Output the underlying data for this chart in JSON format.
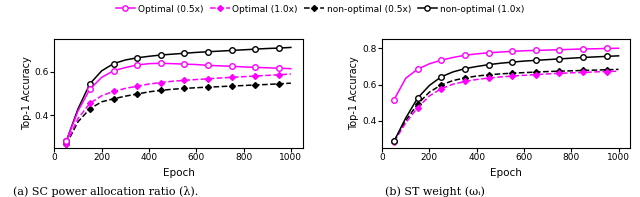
{
  "epochs": [
    50,
    100,
    150,
    200,
    250,
    300,
    350,
    400,
    450,
    500,
    550,
    600,
    650,
    700,
    750,
    800,
    850,
    900,
    950,
    1000
  ],
  "left": {
    "opt_05": [
      0.28,
      0.42,
      0.52,
      0.575,
      0.605,
      0.62,
      0.632,
      0.638,
      0.64,
      0.638,
      0.636,
      0.634,
      0.63,
      0.628,
      0.626,
      0.623,
      0.621,
      0.619,
      0.617,
      0.615
    ],
    "opt_10": [
      0.28,
      0.43,
      0.545,
      0.605,
      0.638,
      0.655,
      0.665,
      0.672,
      0.678,
      0.682,
      0.686,
      0.69,
      0.693,
      0.696,
      0.699,
      0.702,
      0.705,
      0.708,
      0.71,
      0.713
    ],
    "nonopt_05": [
      0.265,
      0.37,
      0.43,
      0.462,
      0.476,
      0.488,
      0.498,
      0.508,
      0.515,
      0.52,
      0.524,
      0.527,
      0.53,
      0.532,
      0.535,
      0.537,
      0.54,
      0.542,
      0.545,
      0.548
    ],
    "nonopt_10": [
      0.268,
      0.385,
      0.455,
      0.49,
      0.51,
      0.524,
      0.534,
      0.544,
      0.551,
      0.557,
      0.561,
      0.565,
      0.568,
      0.572,
      0.575,
      0.578,
      0.581,
      0.584,
      0.587,
      0.59
    ]
  },
  "right": {
    "opt_05": [
      0.515,
      0.635,
      0.685,
      0.715,
      0.735,
      0.75,
      0.762,
      0.77,
      0.776,
      0.78,
      0.784,
      0.787,
      0.789,
      0.791,
      0.793,
      0.795,
      0.797,
      0.798,
      0.8,
      0.801
    ],
    "opt_10": [
      0.285,
      0.415,
      0.525,
      0.595,
      0.643,
      0.67,
      0.688,
      0.7,
      0.71,
      0.718,
      0.724,
      0.73,
      0.734,
      0.738,
      0.742,
      0.746,
      0.75,
      0.753,
      0.756,
      0.759
    ],
    "nonopt_05": [
      0.285,
      0.4,
      0.492,
      0.558,
      0.598,
      0.622,
      0.637,
      0.647,
      0.654,
      0.659,
      0.663,
      0.666,
      0.669,
      0.672,
      0.674,
      0.676,
      0.678,
      0.68,
      0.682,
      0.684
    ],
    "nonopt_10": [
      0.283,
      0.388,
      0.472,
      0.537,
      0.577,
      0.602,
      0.617,
      0.628,
      0.636,
      0.642,
      0.647,
      0.651,
      0.655,
      0.659,
      0.662,
      0.665,
      0.667,
      0.67,
      0.672,
      0.674
    ]
  },
  "mag": "#ff00ff",
  "blk": "#000000",
  "ylim_left": [
    0.25,
    0.75
  ],
  "ylim_right": [
    0.25,
    0.85
  ],
  "yticks_left": [
    0.4,
    0.6
  ],
  "yticks_right": [
    0.4,
    0.6,
    0.8
  ],
  "xticks": [
    0,
    200,
    400,
    600,
    800,
    1000
  ],
  "xlim": [
    0,
    1050
  ],
  "xlabel": "Epoch",
  "ylabel": "Top-1 Accuracy",
  "caption_left": "(a) SC power allocation ratio (λ).",
  "caption_right": "(b) ST weight (ωᵢ)",
  "legend_labels": [
    "Optimal (0.5x)",
    "Optimal (1.0x)",
    "non-optimal (0.5x)",
    "non-optimal (1.0x)"
  ]
}
